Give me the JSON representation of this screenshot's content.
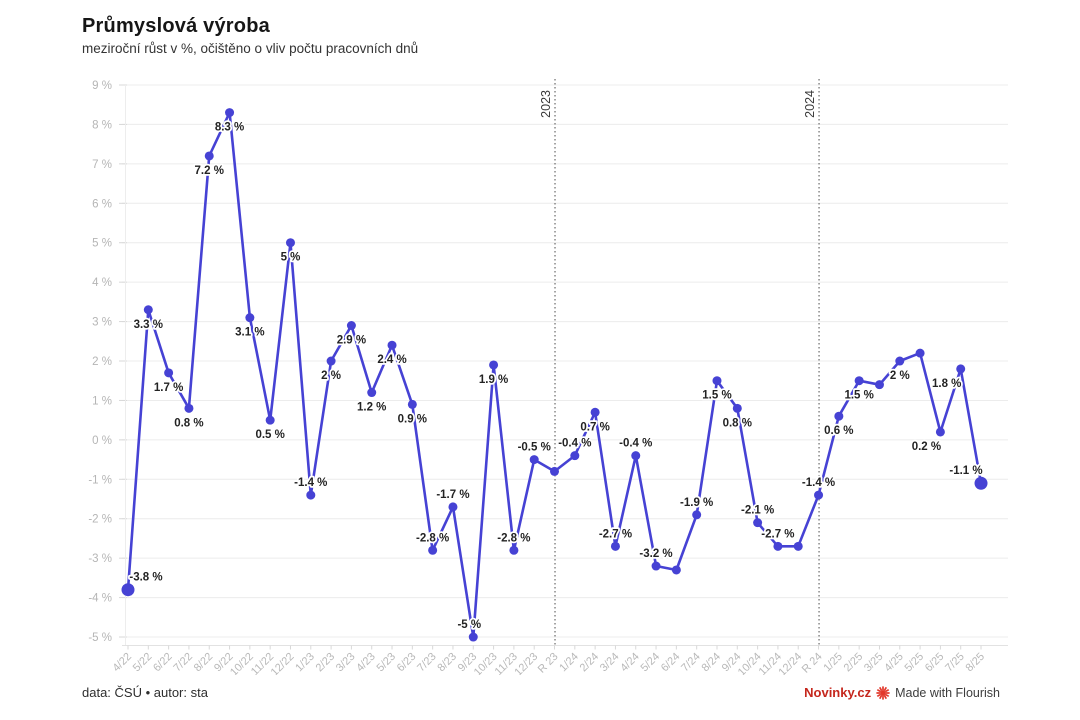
{
  "header": {
    "title": "Průmyslová výroba",
    "subtitle": "meziroční růst v %, očištěno o vliv počtu pracovních dnů"
  },
  "footer": {
    "credits": "data: ČSÚ • autor: sta",
    "brand": "Novinky.cz",
    "brand_color": "#c5271d",
    "flourish_icon_color": "#e2382b",
    "flourish": "Made with Flourish"
  },
  "chart_data": {
    "type": "line",
    "title": "Průmyslová výroba",
    "subtitle": "meziroční růst v %, očištěno o vliv počtu pracovních dnů",
    "xlabel": "",
    "ylabel": "",
    "ylim": [
      -5,
      9
    ],
    "ytick_step": 1,
    "ytick_suffix": " %",
    "grid": true,
    "legend": "none",
    "line_color": "#4642d4",
    "label_color": "#232323",
    "axis_text_color": "#b5b5b5",
    "endpoint_big_dots": true,
    "year_markers": [
      {
        "label": "2023",
        "index": 21
      },
      {
        "label": "2024",
        "index": 34
      }
    ],
    "points": [
      {
        "x": "4/22",
        "y": -3.8,
        "label": "-3.8 %",
        "pos": "a",
        "dx": 18
      },
      {
        "x": "5/22",
        "y": 3.3,
        "label": "3.3 %",
        "pos": "b"
      },
      {
        "x": "6/22",
        "y": 1.7,
        "label": "1.7 %",
        "pos": "b"
      },
      {
        "x": "7/22",
        "y": 0.8,
        "label": "0.8 %",
        "pos": "b"
      },
      {
        "x": "8/22",
        "y": 7.2,
        "label": "7.2 %",
        "pos": "b"
      },
      {
        "x": "9/22",
        "y": 8.3,
        "label": "8.3 %",
        "pos": "b"
      },
      {
        "x": "10/22",
        "y": 3.1,
        "label": "3.1 %",
        "pos": "b"
      },
      {
        "x": "11/22",
        "y": 0.5,
        "label": "0.5 %",
        "pos": "b"
      },
      {
        "x": "12/22",
        "y": 5,
        "label": "5 %",
        "pos": "b"
      },
      {
        "x": "1/23",
        "y": -1.4,
        "label": "-1.4 %",
        "pos": "a"
      },
      {
        "x": "2/23",
        "y": 2,
        "label": "2 %",
        "pos": "b"
      },
      {
        "x": "3/23",
        "y": 2.9,
        "label": "2.9 %",
        "pos": "b"
      },
      {
        "x": "4/23",
        "y": 1.2,
        "label": "1.2 %",
        "pos": "b"
      },
      {
        "x": "5/23",
        "y": 2.4,
        "label": "2.4 %",
        "pos": "b"
      },
      {
        "x": "6/23",
        "y": 0.9,
        "label": "0.9 %",
        "pos": "b"
      },
      {
        "x": "7/23",
        "y": -2.8,
        "label": "-2.8 %",
        "pos": "a"
      },
      {
        "x": "8/23",
        "y": -1.7,
        "label": "-1.7 %",
        "pos": "a"
      },
      {
        "x": "9/23",
        "y": -5,
        "label": "-5 %",
        "pos": "a",
        "dx": -4
      },
      {
        "x": "10/23",
        "y": 1.9,
        "label": "1.9 %",
        "pos": "b"
      },
      {
        "x": "11/23",
        "y": -2.8,
        "label": "-2.8 %",
        "pos": "a"
      },
      {
        "x": "12/23",
        "y": -0.5,
        "label": "-0.5 %",
        "pos": "a"
      },
      {
        "x": "R 23",
        "y": -0.8,
        "label": null
      },
      {
        "x": "1/24",
        "y": -0.4,
        "label": "-0.4 %",
        "pos": "a"
      },
      {
        "x": "2/24",
        "y": 0.7,
        "label": "0.7 %",
        "pos": "b"
      },
      {
        "x": "3/24",
        "y": -2.7,
        "label": "-2.7 %",
        "pos": "a"
      },
      {
        "x": "4/24",
        "y": -0.4,
        "label": "-0.4 %",
        "pos": "a"
      },
      {
        "x": "5/24",
        "y": -3.2,
        "label": "-3.2 %",
        "pos": "a"
      },
      {
        "x": "6/24",
        "y": -3.3,
        "label": null
      },
      {
        "x": "7/24",
        "y": -1.9,
        "label": "-1.9 %",
        "pos": "a"
      },
      {
        "x": "8/24",
        "y": 1.5,
        "label": "1.5 %",
        "pos": "b"
      },
      {
        "x": "9/24",
        "y": 0.8,
        "label": "0.8 %",
        "pos": "b"
      },
      {
        "x": "10/24",
        "y": -2.1,
        "label": "-2.1 %",
        "pos": "a"
      },
      {
        "x": "11/24",
        "y": -2.7,
        "label": "-2.7 %",
        "pos": "a"
      },
      {
        "x": "12/24",
        "y": -2.7,
        "label": null
      },
      {
        "x": "R 24",
        "y": -1.4,
        "label": "-1.4 %",
        "pos": "a"
      },
      {
        "x": "1/25",
        "y": 0.6,
        "label": "0.6 %",
        "pos": "b"
      },
      {
        "x": "2/25",
        "y": 1.5,
        "label": "1.5 %",
        "pos": "b"
      },
      {
        "x": "3/25",
        "y": 1.4,
        "label": null
      },
      {
        "x": "4/25",
        "y": 2,
        "label": "2 %",
        "pos": "b"
      },
      {
        "x": "5/25",
        "y": 2.2,
        "label": null
      },
      {
        "x": "6/25",
        "y": 0.2,
        "label": "0.2 %",
        "pos": "b",
        "dx": -14
      },
      {
        "x": "7/25",
        "y": 1.8,
        "label": "1.8 %",
        "pos": "b",
        "dx": -14
      },
      {
        "x": "8/25",
        "y": -1.1,
        "label": "-1.1 %",
        "pos": "a",
        "dx": -15
      }
    ]
  }
}
